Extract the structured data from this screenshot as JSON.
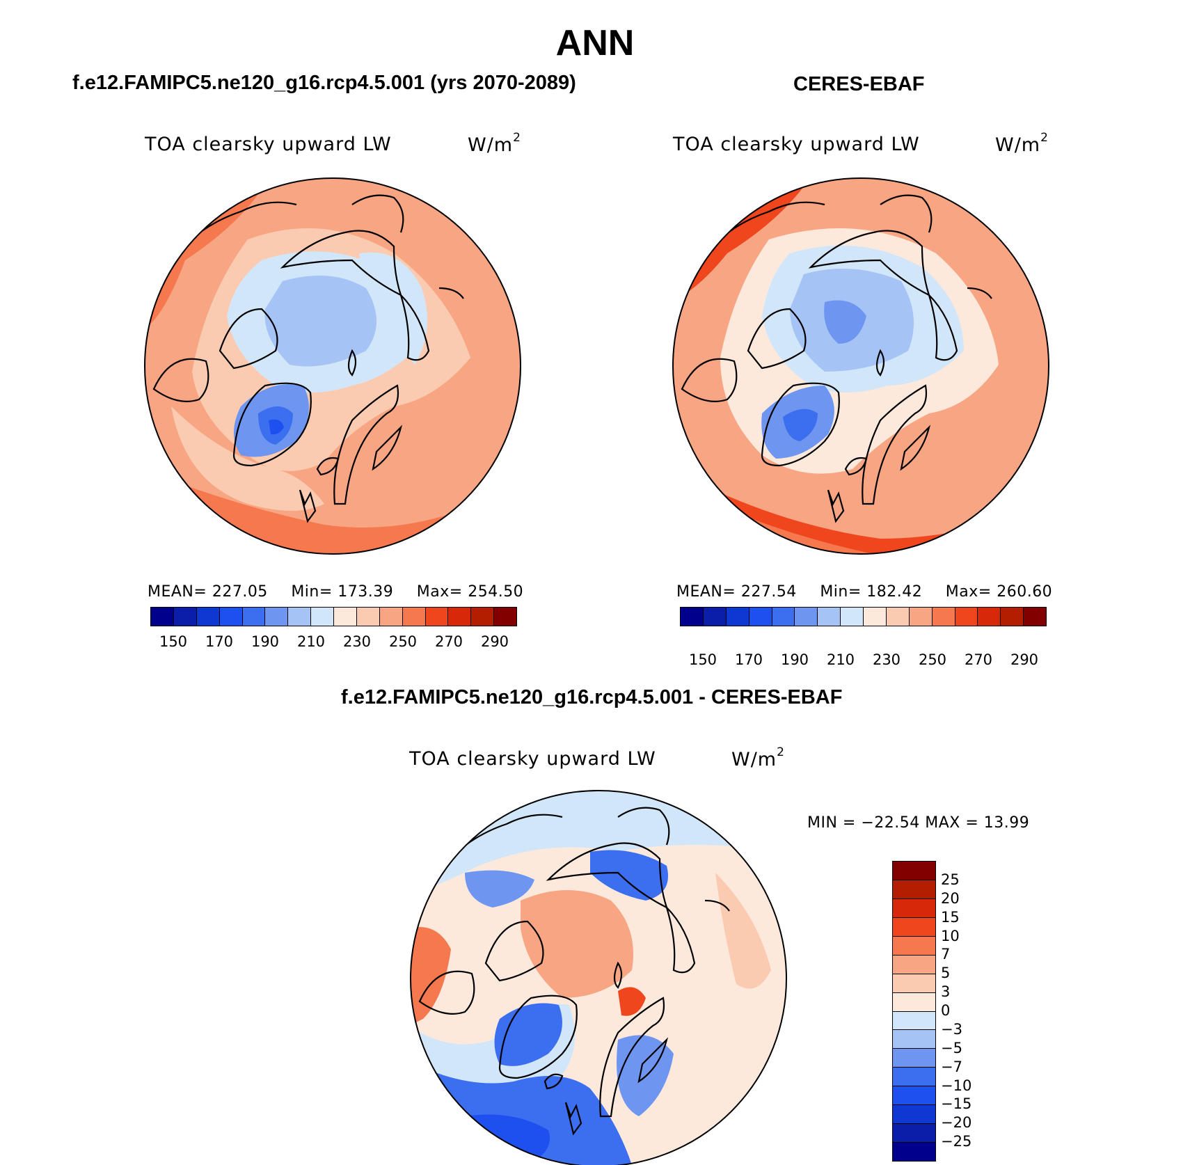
{
  "header": {
    "season": "ANN"
  },
  "panels": {
    "model": {
      "case_title": "f.e12.FAMIPC5.ne120_g16.rcp4.5.001 (yrs 2070-2089)",
      "variable": "TOA clearsky upward LW",
      "units_base": "W/m",
      "units_exp": "2",
      "mean_label": "MEAN=",
      "mean": "227.05",
      "min_label": "Min=",
      "min": "173.39",
      "max_label": "Max=",
      "max": "254.50"
    },
    "obs": {
      "case_title": "CERES-EBAF",
      "variable": "TOA clearsky upward LW",
      "units_base": "W/m",
      "units_exp": "2",
      "mean_label": "MEAN=",
      "mean": "227.54",
      "min_label": "Min=",
      "min": "182.42",
      "max_label": "Max=",
      "max": "260.60"
    },
    "diff": {
      "case_title": "f.e12.FAMIPC5.ne120_g16.rcp4.5.001 - CERES-EBAF",
      "variable": "TOA clearsky upward LW",
      "units_base": "W/m",
      "units_exp": "2",
      "minmax_text": "MIN = −22.54 MAX =   13.99"
    }
  },
  "colorbar_main": {
    "colors": [
      "#00008c",
      "#0a1eaa",
      "#0f37d2",
      "#1e50f0",
      "#3c6ef0",
      "#6e96f0",
      "#a5c3f5",
      "#d2e6fa",
      "#fde9dc",
      "#fbcbb1",
      "#f7a582",
      "#f5784f",
      "#f0461e",
      "#d7280a",
      "#b41e00",
      "#820000"
    ],
    "tick_labels": [
      "150",
      "170",
      "190",
      "210",
      "230",
      "250",
      "270",
      "290"
    ]
  },
  "colorbar_diff": {
    "colors": [
      "#820000",
      "#b41e00",
      "#d7280a",
      "#f0461e",
      "#f5784f",
      "#f7a582",
      "#fbcbb1",
      "#fde9dc",
      "#d2e6fa",
      "#a5c3f5",
      "#6e96f0",
      "#3c6ef0",
      "#1e50f0",
      "#0f37d2",
      "#0a1eaa",
      "#00008c"
    ],
    "tick_labels": [
      "25",
      "20",
      "15",
      "10",
      "7",
      "5",
      "3",
      "0",
      "−3",
      "−5",
      "−7",
      "−10",
      "−15",
      "−20",
      "−25"
    ]
  }
}
